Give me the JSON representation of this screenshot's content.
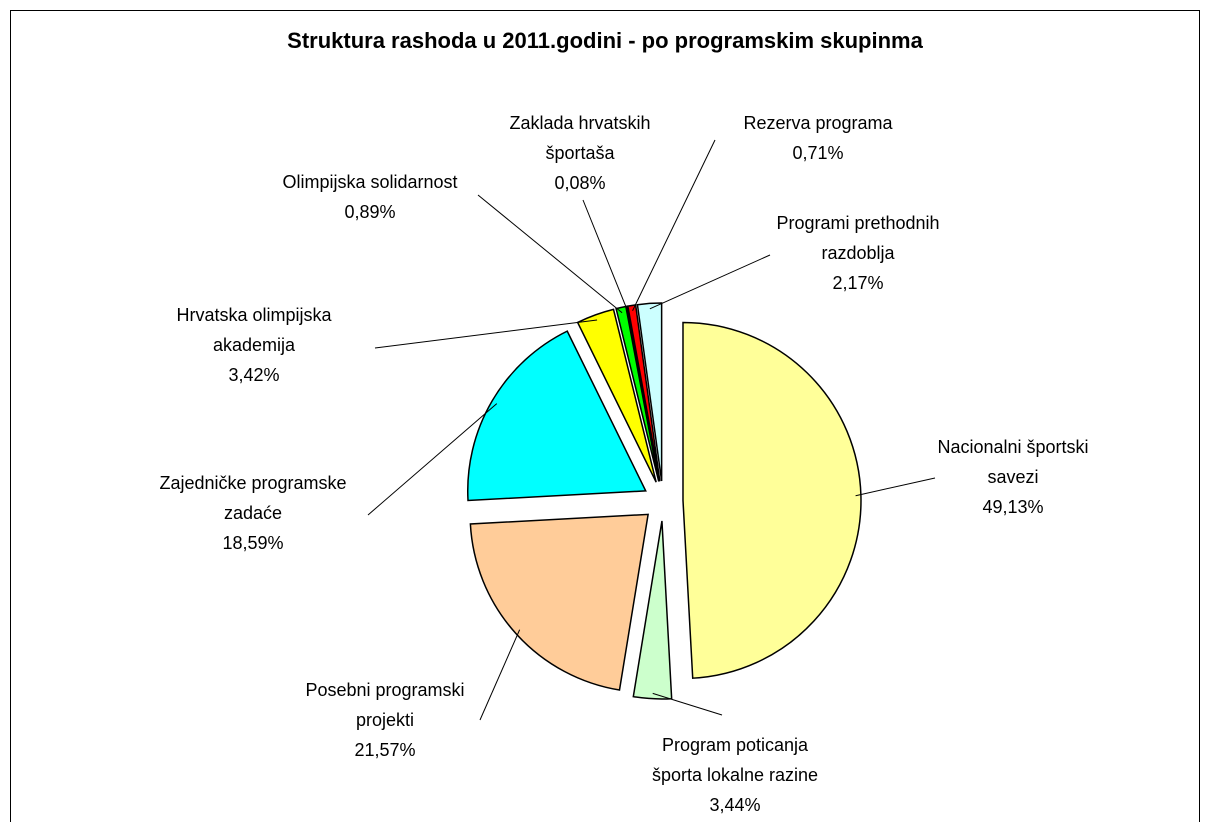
{
  "chart_data": {
    "type": "pie",
    "title": "Struktura rashoda u 2011.godini - po programskim skupinma",
    "categories": [
      "Nacionalni športski savezi",
      "Program poticanja športa lokalne razine",
      "Posebni programski projekti",
      "Zajedničke programske zadaće",
      "Hrvatska olimpijska akademija",
      "Olimpijska solidarnost",
      "Zaklada hrvatskih športaša",
      "Rezerva programa",
      "Programi prethodnih razdoblja"
    ],
    "values": [
      49.13,
      3.44,
      21.57,
      18.59,
      3.42,
      0.89,
      0.08,
      0.71,
      2.17
    ],
    "value_labels": [
      "49,13%",
      "3,44%",
      "21,57%",
      "18,59%",
      "3,42%",
      "0,89%",
      "0,08%",
      "0,71%",
      "2,17%"
    ],
    "colors": [
      "#FFFF99",
      "#CCFFCC",
      "#FFCC99",
      "#00FFFF",
      "#FFFF00",
      "#00FF00",
      "#3333CC",
      "#FF0000",
      "#CCFFFF"
    ]
  }
}
